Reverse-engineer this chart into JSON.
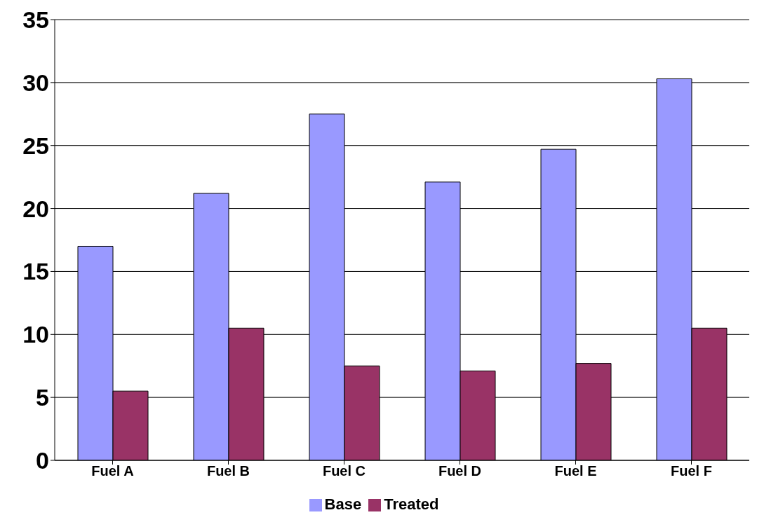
{
  "chart_data": {
    "type": "bar",
    "categories": [
      "Fuel A",
      "Fuel B",
      "Fuel C",
      "Fuel D",
      "Fuel E",
      "Fuel F"
    ],
    "series": [
      {
        "name": "Base",
        "color": "#9999ff",
        "values": [
          17,
          21.2,
          27.5,
          22.1,
          24.7,
          30.3
        ]
      },
      {
        "name": "Treated",
        "color": "#993366",
        "values": [
          5.5,
          10.5,
          7.5,
          7.1,
          7.7,
          10.5
        ]
      }
    ],
    "ylim": [
      0,
      35
    ],
    "yticks": [
      0,
      5,
      10,
      15,
      20,
      25,
      30,
      35
    ],
    "grid": "y",
    "legend": "bottom"
  }
}
